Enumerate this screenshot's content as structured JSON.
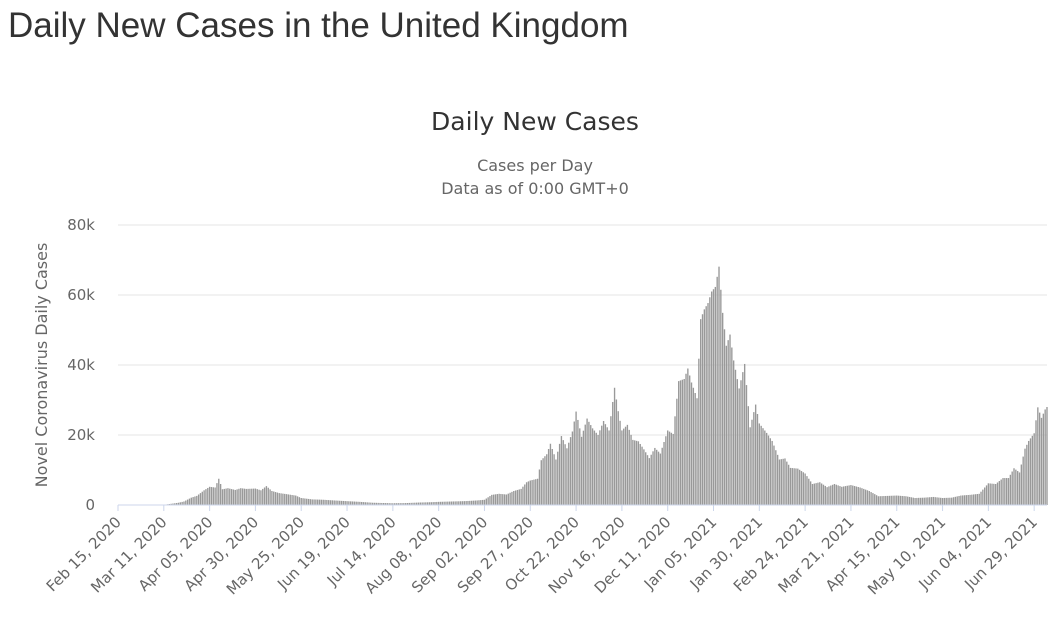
{
  "page": {
    "title": "Daily New Cases in the United Kingdom"
  },
  "chart_data": {
    "type": "bar",
    "title": "Daily New Cases",
    "subtitle_lines": [
      "Cases per Day",
      "Data as of 0:00 GMT+0"
    ],
    "ylabel": "Novel Coronavirus Daily Cases",
    "xlabel": "",
    "ylim": [
      0,
      80000
    ],
    "y_ticks": [
      0,
      20000,
      40000,
      60000,
      80000
    ],
    "y_tick_labels": [
      "0",
      "20k",
      "40k",
      "60k",
      "80k"
    ],
    "x_start": "2020-02-15",
    "x_end": "2021-07-06",
    "x_ticks": [
      "2020-02-15",
      "2020-03-11",
      "2020-04-05",
      "2020-04-30",
      "2020-05-25",
      "2020-06-19",
      "2020-07-14",
      "2020-08-08",
      "2020-09-02",
      "2020-09-27",
      "2020-10-22",
      "2020-11-16",
      "2020-12-11",
      "2021-01-05",
      "2021-01-30",
      "2021-02-24",
      "2021-03-21",
      "2021-04-15",
      "2021-05-10",
      "2021-06-04",
      "2021-06-29"
    ],
    "x_tick_labels": [
      "Feb 15, 2020",
      "Mar 11, 2020",
      "Apr 05, 2020",
      "Apr 30, 2020",
      "May 25, 2020",
      "Jun 19, 2020",
      "Jul 14, 2020",
      "Aug 08, 2020",
      "Sep 02, 2020",
      "Sep 27, 2020",
      "Oct 22, 2020",
      "Nov 16, 2020",
      "Dec 11, 2020",
      "Jan 05, 2021",
      "Jan 30, 2021",
      "Feb 24, 2021",
      "Mar 21, 2021",
      "Apr 15, 2021",
      "May 10, 2021",
      "Jun 04, 2021",
      "Jun 29, 2021"
    ],
    "grid": true,
    "bar_color": "#999999",
    "series": [
      {
        "values": [
          {
            "x": "2020-02-15",
            "y": 0
          },
          {
            "x": "2020-02-22",
            "y": 0
          },
          {
            "x": "2020-03-01",
            "y": 10
          },
          {
            "x": "2020-03-08",
            "y": 60
          },
          {
            "x": "2020-03-12",
            "y": 130
          },
          {
            "x": "2020-03-15",
            "y": 350
          },
          {
            "x": "2020-03-19",
            "y": 650
          },
          {
            "x": "2020-03-22",
            "y": 1000
          },
          {
            "x": "2020-03-26",
            "y": 2100
          },
          {
            "x": "2020-03-29",
            "y": 2600
          },
          {
            "x": "2020-04-02",
            "y": 4200
          },
          {
            "x": "2020-04-05",
            "y": 5200
          },
          {
            "x": "2020-04-08",
            "y": 5000
          },
          {
            "x": "2020-04-10",
            "y": 7500
          },
          {
            "x": "2020-04-12",
            "y": 4500
          },
          {
            "x": "2020-04-15",
            "y": 4800
          },
          {
            "x": "2020-04-19",
            "y": 4300
          },
          {
            "x": "2020-04-22",
            "y": 4800
          },
          {
            "x": "2020-04-25",
            "y": 4600
          },
          {
            "x": "2020-04-30",
            "y": 4700
          },
          {
            "x": "2020-05-03",
            "y": 4200
          },
          {
            "x": "2020-05-06",
            "y": 5400
          },
          {
            "x": "2020-05-09",
            "y": 4000
          },
          {
            "x": "2020-05-13",
            "y": 3400
          },
          {
            "x": "2020-05-17",
            "y": 3100
          },
          {
            "x": "2020-05-22",
            "y": 2700
          },
          {
            "x": "2020-05-25",
            "y": 2000
          },
          {
            "x": "2020-05-31",
            "y": 1600
          },
          {
            "x": "2020-06-06",
            "y": 1500
          },
          {
            "x": "2020-06-12",
            "y": 1300
          },
          {
            "x": "2020-06-19",
            "y": 1100
          },
          {
            "x": "2020-06-26",
            "y": 900
          },
          {
            "x": "2020-07-03",
            "y": 650
          },
          {
            "x": "2020-07-10",
            "y": 550
          },
          {
            "x": "2020-07-14",
            "y": 500
          },
          {
            "x": "2020-07-21",
            "y": 550
          },
          {
            "x": "2020-07-28",
            "y": 700
          },
          {
            "x": "2020-08-04",
            "y": 800
          },
          {
            "x": "2020-08-08",
            "y": 900
          },
          {
            "x": "2020-08-15",
            "y": 1000
          },
          {
            "x": "2020-08-22",
            "y": 1100
          },
          {
            "x": "2020-08-29",
            "y": 1300
          },
          {
            "x": "2020-09-02",
            "y": 1500
          },
          {
            "x": "2020-09-06",
            "y": 2900
          },
          {
            "x": "2020-09-10",
            "y": 3200
          },
          {
            "x": "2020-09-14",
            "y": 3000
          },
          {
            "x": "2020-09-18",
            "y": 4000
          },
          {
            "x": "2020-09-22",
            "y": 4600
          },
          {
            "x": "2020-09-25",
            "y": 6500
          },
          {
            "x": "2020-09-27",
            "y": 7000
          },
          {
            "x": "2020-10-01",
            "y": 7500
          },
          {
            "x": "2020-10-03",
            "y": 12800
          },
          {
            "x": "2020-10-06",
            "y": 14500
          },
          {
            "x": "2020-10-08",
            "y": 17500
          },
          {
            "x": "2020-10-11",
            "y": 13000
          },
          {
            "x": "2020-10-14",
            "y": 19700
          },
          {
            "x": "2020-10-17",
            "y": 16200
          },
          {
            "x": "2020-10-20",
            "y": 21000
          },
          {
            "x": "2020-10-22",
            "y": 26700
          },
          {
            "x": "2020-10-25",
            "y": 19500
          },
          {
            "x": "2020-10-28",
            "y": 24700
          },
          {
            "x": "2020-10-31",
            "y": 21900
          },
          {
            "x": "2020-11-03",
            "y": 20000
          },
          {
            "x": "2020-11-06",
            "y": 24000
          },
          {
            "x": "2020-11-09",
            "y": 21300
          },
          {
            "x": "2020-11-12",
            "y": 33500
          },
          {
            "x": "2020-11-14",
            "y": 26800
          },
          {
            "x": "2020-11-16",
            "y": 21300
          },
          {
            "x": "2020-11-19",
            "y": 22900
          },
          {
            "x": "2020-11-22",
            "y": 18600
          },
          {
            "x": "2020-11-25",
            "y": 18200
          },
          {
            "x": "2020-11-28",
            "y": 15900
          },
          {
            "x": "2020-12-01",
            "y": 13400
          },
          {
            "x": "2020-12-04",
            "y": 16300
          },
          {
            "x": "2020-12-07",
            "y": 14700
          },
          {
            "x": "2020-12-11",
            "y": 21300
          },
          {
            "x": "2020-12-14",
            "y": 20300
          },
          {
            "x": "2020-12-17",
            "y": 35400
          },
          {
            "x": "2020-12-20",
            "y": 36000
          },
          {
            "x": "2020-12-22",
            "y": 39000
          },
          {
            "x": "2020-12-24",
            "y": 35000
          },
          {
            "x": "2020-12-27",
            "y": 30500
          },
          {
            "x": "2020-12-29",
            "y": 53100
          },
          {
            "x": "2020-12-31",
            "y": 55900
          },
          {
            "x": "2021-01-02",
            "y": 57700
          },
          {
            "x": "2021-01-04",
            "y": 61000
          },
          {
            "x": "2021-01-06",
            "y": 62300
          },
          {
            "x": "2021-01-08",
            "y": 68100
          },
          {
            "x": "2021-01-10",
            "y": 54900
          },
          {
            "x": "2021-01-12",
            "y": 45500
          },
          {
            "x": "2021-01-14",
            "y": 48700
          },
          {
            "x": "2021-01-16",
            "y": 41300
          },
          {
            "x": "2021-01-19",
            "y": 33300
          },
          {
            "x": "2021-01-22",
            "y": 40300
          },
          {
            "x": "2021-01-25",
            "y": 22200
          },
          {
            "x": "2021-01-28",
            "y": 28700
          },
          {
            "x": "2021-01-30",
            "y": 23300
          },
          {
            "x": "2021-02-03",
            "y": 20600
          },
          {
            "x": "2021-02-06",
            "y": 18300
          },
          {
            "x": "2021-02-10",
            "y": 13000
          },
          {
            "x": "2021-02-13",
            "y": 13300
          },
          {
            "x": "2021-02-16",
            "y": 10600
          },
          {
            "x": "2021-02-20",
            "y": 10400
          },
          {
            "x": "2021-02-24",
            "y": 9000
          },
          {
            "x": "2021-02-28",
            "y": 6000
          },
          {
            "x": "2021-03-04",
            "y": 6500
          },
          {
            "x": "2021-03-08",
            "y": 5100
          },
          {
            "x": "2021-03-12",
            "y": 6000
          },
          {
            "x": "2021-03-16",
            "y": 5200
          },
          {
            "x": "2021-03-21",
            "y": 5700
          },
          {
            "x": "2021-03-26",
            "y": 5000
          },
          {
            "x": "2021-03-31",
            "y": 4000
          },
          {
            "x": "2021-04-05",
            "y": 2500
          },
          {
            "x": "2021-04-10",
            "y": 2600
          },
          {
            "x": "2021-04-15",
            "y": 2700
          },
          {
            "x": "2021-04-20",
            "y": 2500
          },
          {
            "x": "2021-04-25",
            "y": 2000
          },
          {
            "x": "2021-04-30",
            "y": 2100
          },
          {
            "x": "2021-05-05",
            "y": 2300
          },
          {
            "x": "2021-05-10",
            "y": 2000
          },
          {
            "x": "2021-05-15",
            "y": 2100
          },
          {
            "x": "2021-05-20",
            "y": 2700
          },
          {
            "x": "2021-05-25",
            "y": 2900
          },
          {
            "x": "2021-05-30",
            "y": 3200
          },
          {
            "x": "2021-06-04",
            "y": 6200
          },
          {
            "x": "2021-06-08",
            "y": 6000
          },
          {
            "x": "2021-06-12",
            "y": 7700
          },
          {
            "x": "2021-06-15",
            "y": 7700
          },
          {
            "x": "2021-06-18",
            "y": 10500
          },
          {
            "x": "2021-06-21",
            "y": 9300
          },
          {
            "x": "2021-06-24",
            "y": 16100
          },
          {
            "x": "2021-06-26",
            "y": 18300
          },
          {
            "x": "2021-06-29",
            "y": 20500
          },
          {
            "x": "2021-07-01",
            "y": 27900
          },
          {
            "x": "2021-07-03",
            "y": 24900
          },
          {
            "x": "2021-07-05",
            "y": 27300
          },
          {
            "x": "2021-07-06",
            "y": 28000
          }
        ]
      }
    ]
  }
}
